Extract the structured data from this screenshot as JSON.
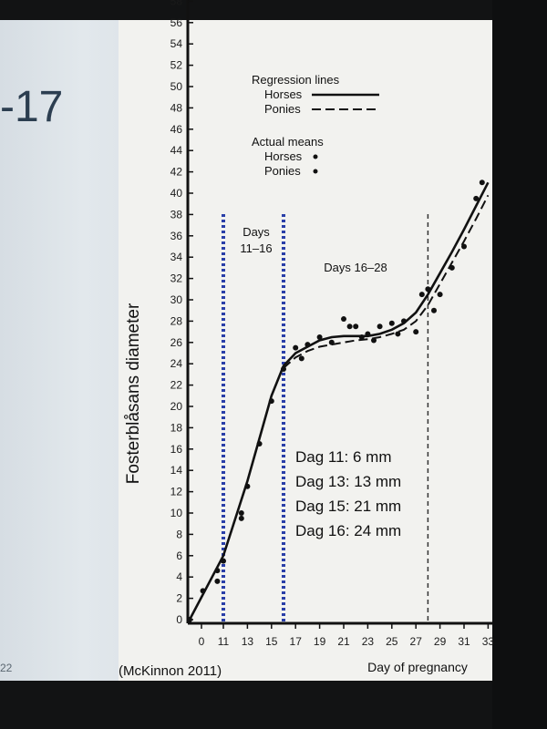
{
  "slide": {
    "number_fragment": "-17",
    "page_index": "22"
  },
  "chart_data": {
    "type": "line",
    "ylabel": "Fosterblåsans diameter",
    "xlabel": "Day of pregnancy",
    "source": "(McKinnon 2011)",
    "ylim": [
      0,
      58
    ],
    "xlim": [
      -1,
      33
    ],
    "yticks": [
      0,
      2,
      4,
      6,
      8,
      10,
      12,
      14,
      16,
      18,
      20,
      22,
      24,
      26,
      28,
      30,
      32,
      34,
      36,
      38,
      40,
      42,
      44,
      46,
      48,
      50,
      52,
      54,
      56,
      58
    ],
    "xticks": [
      0,
      11,
      13,
      15,
      17,
      19,
      21,
      23,
      25,
      27,
      29,
      31,
      33
    ],
    "legend": {
      "title_lines": "Regression lines",
      "line_horses": "Horses",
      "line_ponies": "Ponies",
      "title_points": "Actual means",
      "pt_horses": "Horses",
      "pt_ponies": "Ponies"
    },
    "regions": [
      {
        "label_line1": "Days",
        "label_line2": "11–16",
        "start": 11,
        "end": 16
      },
      {
        "label": "Days 16–28",
        "start": 16,
        "end": 28
      }
    ],
    "annotations": [
      "Dag 11: 6 mm",
      "Dag 13: 13 mm",
      "Dag 15: 21 mm",
      "Dag 16: 24 mm"
    ],
    "series": [
      {
        "name": "Horses",
        "style": "solid",
        "x": [
          -1,
          11,
          12,
          13,
          14,
          15,
          16,
          17,
          18,
          19,
          20,
          21,
          22,
          23,
          24,
          25,
          26,
          27,
          28,
          29,
          30,
          31,
          32,
          33
        ],
        "y": [
          0,
          6,
          9.5,
          13,
          17,
          21,
          23.8,
          25,
          25.6,
          26.2,
          26.5,
          26.6,
          26.6,
          26.6,
          26.8,
          27.2,
          27.8,
          28.8,
          30.5,
          32.5,
          34.5,
          36.6,
          38.8,
          41
        ]
      },
      {
        "name": "Ponies",
        "style": "dashed",
        "x": [
          16,
          17,
          18,
          19,
          20,
          21,
          22,
          23,
          24,
          25,
          26,
          27,
          28,
          29,
          30,
          31,
          32,
          33
        ],
        "y": [
          23.6,
          24.6,
          25.2,
          25.6,
          25.8,
          26,
          26.2,
          26.3,
          26.5,
          26.8,
          27.2,
          28,
          29.5,
          31.5,
          33.5,
          35.5,
          37.6,
          39.8
        ]
      }
    ],
    "points": {
      "x": [
        -1,
        9.3,
        10.5,
        10.5,
        11,
        12.5,
        12.5,
        13,
        14,
        15,
        16,
        17,
        17.5,
        18,
        19,
        20,
        21,
        21.5,
        22,
        22.5,
        23,
        23.5,
        24,
        25,
        25.5,
        26,
        27,
        27.5,
        28,
        28.5,
        29,
        30,
        31,
        32,
        32.5
      ],
      "y": [
        0,
        2.7,
        3.6,
        4.6,
        5.5,
        9.5,
        10,
        12.5,
        16.5,
        20.5,
        23.5,
        25.5,
        24.5,
        25.8,
        26.5,
        26,
        28.2,
        27.5,
        27.5,
        26.5,
        26.8,
        26.2,
        27.5,
        27.8,
        26.8,
        28,
        27,
        30.5,
        31,
        29,
        30.5,
        33,
        35,
        39.5,
        41
      ]
    },
    "grid": false,
    "legend_position": "top-center"
  }
}
